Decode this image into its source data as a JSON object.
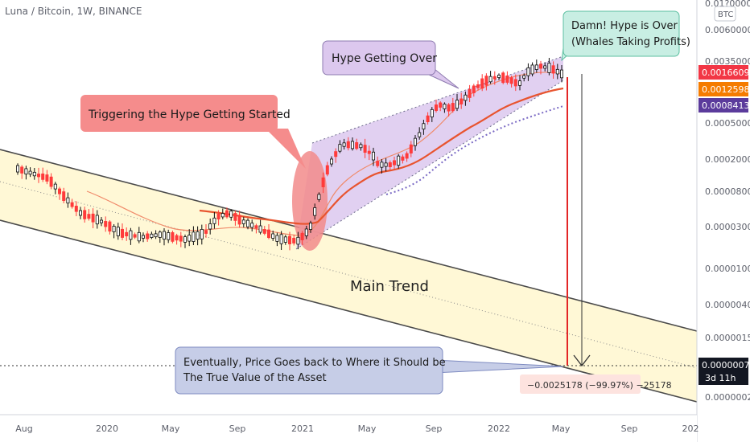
{
  "symbol_line": "Luna / Bitcoin, 1W, BINANCE",
  "chart_data": {
    "type": "candlestick",
    "title": "Luna / Bitcoin, 1W, BINANCE",
    "scale": "log",
    "x_ticks": [
      "Aug",
      "2020",
      "May",
      "Sep",
      "2021",
      "May",
      "Sep",
      "2022",
      "May",
      "Sep",
      "202"
    ],
    "y_ticks": [
      "0.01?0000",
      "0.0060000",
      "0.0035000",
      "0.0005000",
      "0.0002000",
      "0.0000800",
      "0.0000300",
      "0.0000100",
      "0.0000040",
      "0.0000015",
      "0.0000002"
    ],
    "currency_badge": "BTC",
    "price_badges": [
      {
        "value": "0.0016609",
        "color": "#f23645"
      },
      {
        "value": "0.0012598",
        "color": "#f57c00"
      },
      {
        "value": "0.0008413",
        "color": "#5b3b9c"
      }
    ],
    "last_price": {
      "value": "0.0000007",
      "countdown": "3d 11h"
    },
    "measure_label": "−0.0025178 (−99.97%) −25178",
    "annotations": {
      "hype_start": "Triggering the Hype Getting Started",
      "hype_over": "Hype Getting Over",
      "whales": [
        "Damn! Hype is Over",
        "(Whales Taking Profits)"
      ],
      "main_trend": "Main Trend",
      "eventually": [
        "Eventually, Price Goes back to Where it Should be",
        "The True Value of the Asset"
      ]
    },
    "colors": {
      "up": "#0d0d0d",
      "down": "#ff3b3b",
      "channel": "#fff8d6",
      "wedge": "#dcc8ee",
      "ma_fast": "#e5673a",
      "ma_slow": "#e8492f",
      "ma_dots": "#7a69c4"
    }
  }
}
